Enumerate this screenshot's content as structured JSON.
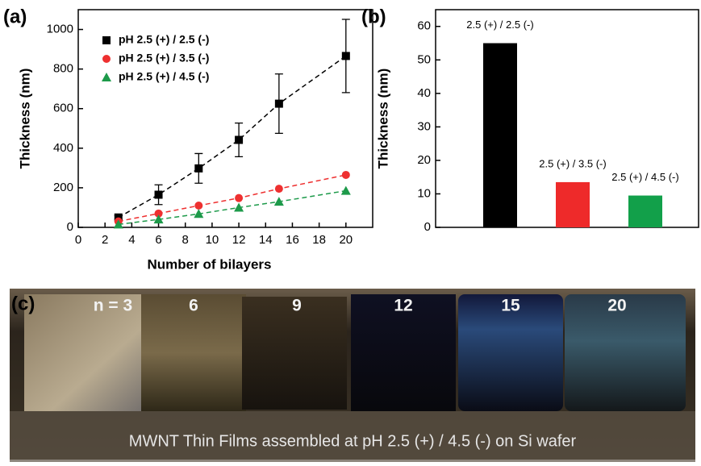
{
  "chart_data": [
    {
      "type": "scatter",
      "panel_label": "(a)",
      "xlabel": "Number of bilayers",
      "ylabel": "Thickness (nm)",
      "xlim": [
        0,
        22
      ],
      "xticks": [
        0,
        2,
        4,
        6,
        8,
        10,
        12,
        14,
        16,
        18,
        20
      ],
      "ylim": [
        0,
        1100
      ],
      "yticks": [
        0,
        200,
        400,
        600,
        800,
        1000
      ],
      "x": [
        3,
        6,
        9,
        12,
        15,
        20
      ],
      "series": [
        {
          "name": "pH 2.5 (+) / 2.5 (-)",
          "color": "#000000",
          "marker": "square",
          "values": [
            50,
            165,
            298,
            442,
            625,
            866
          ],
          "errors": [
            10,
            50,
            75,
            85,
            150,
            185
          ]
        },
        {
          "name": "pH 2.5 (+) / 3.5 (-)",
          "color": "#ee3030",
          "marker": "circle",
          "values": [
            30,
            70,
            110,
            148,
            195,
            265
          ]
        },
        {
          "name": "pH 2.5 (+) / 4.5 (-)",
          "color": "#1d9a4a",
          "marker": "triangle",
          "values": [
            15,
            40,
            68,
            100,
            130,
            185
          ]
        }
      ]
    },
    {
      "type": "bar",
      "panel_label": "(b)",
      "ylabel": "Thickness (nm)",
      "ylim": [
        0,
        65
      ],
      "yticks": [
        0,
        10,
        20,
        30,
        40,
        50,
        60
      ],
      "categories": [
        "2.5 (+) / 2.5 (-)",
        "2.5 (+) / 3.5 (-)",
        "2.5 (+) / 4.5 (-)"
      ],
      "values": [
        55,
        13.5,
        9.5
      ],
      "colors": [
        "#000000",
        "#ee2a2a",
        "#12a04a"
      ]
    }
  ],
  "photo": {
    "panel_label": "(c)",
    "sample_labels": [
      "n = 3",
      "6",
      "9",
      "12",
      "15",
      "20"
    ],
    "caption": "MWNT Thin Films assembled at pH 2.5 (+) / 4.5 (-) on Si wafer"
  }
}
